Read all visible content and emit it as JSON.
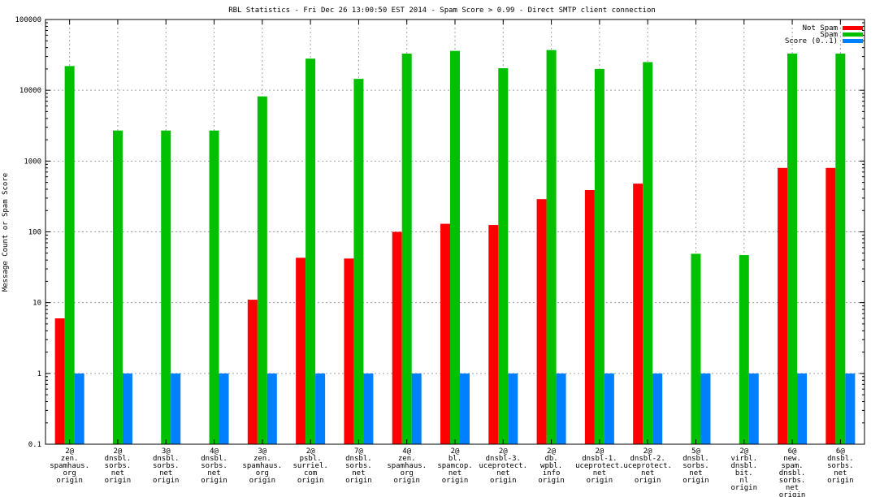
{
  "chart_data": {
    "type": "bar",
    "title": "RBL Statistics - Fri Dec 26 13:00:50 EST 2014 - Spam Score > 0.99 - Direct SMTP client connection",
    "ylabel": "Message Count or Spam Score",
    "xlabel": "",
    "yscale": "log",
    "ylim": [
      0.1,
      100000
    ],
    "yticks": [
      "0.1",
      "1",
      "10",
      "100",
      "1000",
      "10000",
      "100000"
    ],
    "grid": true,
    "legend_position": "top-right",
    "categories": [
      [
        "2@",
        "zen.",
        "spamhaus.",
        "org",
        "origin"
      ],
      [
        "2@",
        "dnsbl.",
        "sorbs.",
        "net",
        "origin"
      ],
      [
        "3@",
        "dnsbl.",
        "sorbs.",
        "net",
        "origin"
      ],
      [
        "4@",
        "dnsbl.",
        "sorbs.",
        "net",
        "origin"
      ],
      [
        "3@",
        "zen.",
        "spamhaus.",
        "org",
        "origin"
      ],
      [
        "2@",
        "psbl.",
        "surriel.",
        "com",
        "origin"
      ],
      [
        "7@",
        "dnsbl.",
        "sorbs.",
        "net",
        "origin"
      ],
      [
        "4@",
        "zen.",
        "spamhaus.",
        "org",
        "origin"
      ],
      [
        "2@",
        "bl.",
        "spamcop.",
        "net",
        "origin"
      ],
      [
        "2@",
        "dnsbl-3.",
        "uceprotect.",
        "net",
        "origin"
      ],
      [
        "2@",
        "db.",
        "wpbl.",
        "info",
        "origin"
      ],
      [
        "2@",
        "dnsbl-1.",
        "uceprotect.",
        "net",
        "origin"
      ],
      [
        "2@",
        "dnsbl-2.",
        "uceprotect.",
        "net",
        "origin"
      ],
      [
        "5@",
        "dnsbl.",
        "sorbs.",
        "net",
        "origin"
      ],
      [
        "2@",
        "virbl.",
        "dnsbl.",
        "bit.",
        "nl",
        "origin"
      ],
      [
        "6@",
        "new.",
        "spam.",
        "dnsbl.",
        "sorbs.",
        "net",
        "origin"
      ],
      [
        "6@",
        "dnsbl.",
        "sorbs.",
        "net",
        "origin"
      ]
    ],
    "series": [
      {
        "name": "Not Spam",
        "color": "#ff0000",
        "values": [
          6,
          null,
          null,
          null,
          11,
          43,
          42,
          100,
          130,
          125,
          290,
          390,
          480,
          null,
          null,
          800,
          800
        ]
      },
      {
        "name": "Spam",
        "color": "#00c000",
        "values": [
          22000,
          2700,
          2700,
          2700,
          8200,
          28000,
          14500,
          33000,
          36000,
          20500,
          37000,
          20000,
          25000,
          49,
          47,
          33000,
          33000
        ]
      },
      {
        "name": "Score (0..1)",
        "color": "#0080ff",
        "values": [
          1,
          1,
          1,
          1,
          1,
          1,
          1,
          1,
          1,
          1,
          1,
          1,
          1,
          1,
          1,
          1,
          1
        ]
      }
    ]
  }
}
